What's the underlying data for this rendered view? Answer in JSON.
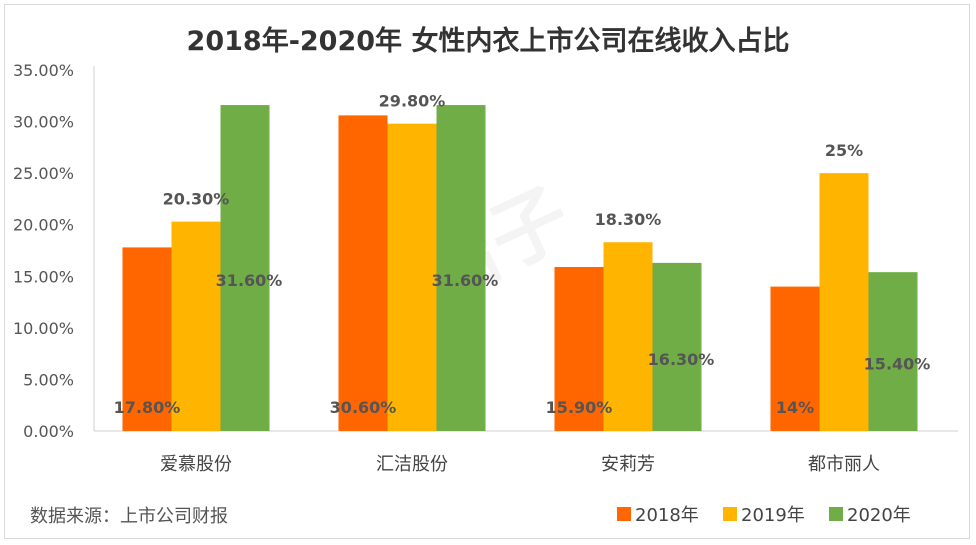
{
  "chart_data": {
    "type": "bar",
    "title": "2018年-2020年 女性内衣上市公司在线收入占比",
    "categories": [
      "爱慕股份",
      "汇洁股份",
      "安莉芳",
      "都市丽人"
    ],
    "series": [
      {
        "name": "2018年",
        "color": "#FF6600",
        "values": [
          17.8,
          30.6,
          15.9,
          14
        ],
        "labels": [
          "17.80%",
          "30.60%",
          "15.90%",
          "14%"
        ]
      },
      {
        "name": "2019年",
        "color": "#FFB400",
        "values": [
          20.3,
          29.8,
          18.3,
          25
        ],
        "labels": [
          "20.30%",
          "29.80%",
          "18.30%",
          "25%"
        ]
      },
      {
        "name": "2020年",
        "color": "#70AD47",
        "values": [
          31.6,
          31.6,
          16.3,
          15.4
        ],
        "labels": [
          "31.60%",
          "31.60%",
          "16.30%",
          "15.40%"
        ]
      }
    ],
    "ylim": [
      0,
      35
    ],
    "yticks": [
      "0.00%",
      "5.00%",
      "10.00%",
      "15.00%",
      "20.00%",
      "25.00%",
      "30.00%",
      "35.00%"
    ],
    "grid": false,
    "legend": "bottom-right",
    "source": "数据来源：上市公司财报"
  },
  "watermark": "桔子"
}
